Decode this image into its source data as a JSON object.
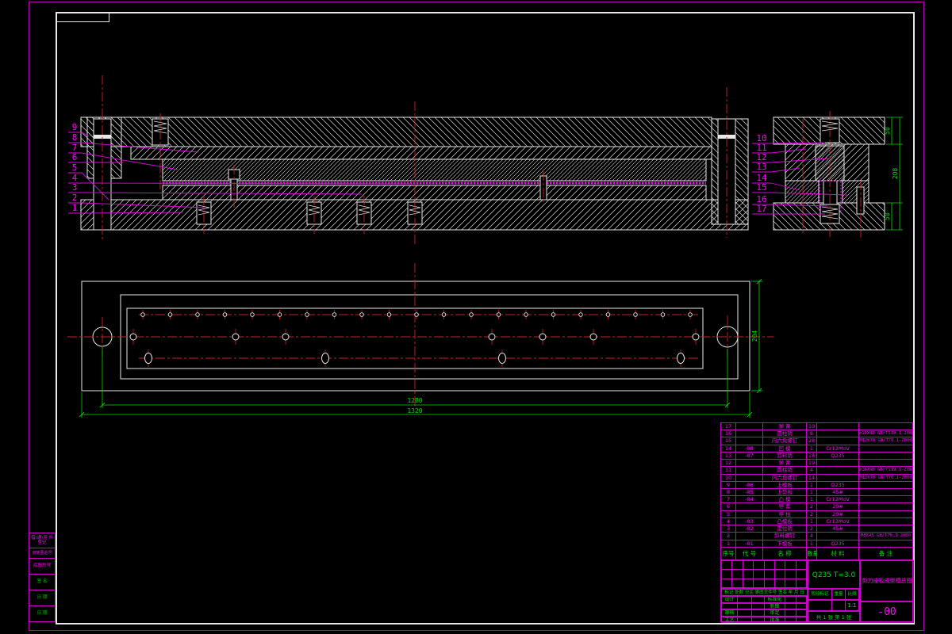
{
  "colors": {
    "background": "#000000",
    "outline": "#E8E8E8",
    "annotation": "#FF00FF",
    "dimension": "#00DD00",
    "centerline": "#CC2222"
  },
  "callouts": {
    "left": [
      "9",
      "8",
      "7",
      "6",
      "5",
      "4",
      "3",
      "2",
      "1"
    ],
    "right": [
      "10",
      "11",
      "12",
      "13",
      "14",
      "15",
      "16",
      "17"
    ]
  },
  "dimensions": {
    "detail_top": "50",
    "detail_height": "208",
    "detail_bottom": "50",
    "plan_inner": "1280",
    "plan_outer": "1320",
    "plan_width": "204"
  },
  "parts_table": {
    "header": {
      "no": "序号",
      "code": "代  号",
      "name": "名  称",
      "qty": "数量",
      "mat": "材  料",
      "note": "备  注"
    },
    "rows": [
      {
        "no": "17",
        "code": "",
        "name": "弹  簧",
        "qty": "10",
        "mat": "",
        "note": ""
      },
      {
        "no": "16",
        "code": "",
        "name": "圆柱销",
        "qty": "8",
        "mat": "",
        "note": "∅16X90 GB/T119.1-2000"
      },
      {
        "no": "15",
        "code": "",
        "name": "内六角螺钉",
        "qty": "28",
        "mat": "",
        "note": "M12X70 GB/T70.1-2000"
      },
      {
        "no": "14",
        "code": "-08",
        "name": "凹  模",
        "qty": "1",
        "mat": "Cr12MoV",
        "note": ""
      },
      {
        "no": "13",
        "code": "-07",
        "name": "卸料销",
        "qty": "18",
        "mat": "Q235",
        "note": ""
      },
      {
        "no": "12",
        "code": "",
        "name": "弹  簧",
        "qty": "19",
        "mat": "",
        "note": ""
      },
      {
        "no": "11",
        "code": "",
        "name": "圆柱销",
        "qty": "4",
        "mat": "",
        "note": "∅16X90 GB/T119.1-2000"
      },
      {
        "no": "10",
        "code": "",
        "name": "内六角螺钉",
        "qty": "14",
        "mat": "",
        "note": "M12X70 GB/T70.1-2000"
      },
      {
        "no": "9",
        "code": "-06",
        "name": "上模板",
        "qty": "1",
        "mat": "Q235",
        "note": ""
      },
      {
        "no": "8",
        "code": "-05",
        "name": "上垫板",
        "qty": "1",
        "mat": "45#",
        "note": ""
      },
      {
        "no": "7",
        "code": "-04",
        "name": "凸  模",
        "qty": "1",
        "mat": "Cr12MoV",
        "note": ""
      },
      {
        "no": "6",
        "code": "",
        "name": "导  套",
        "qty": "2",
        "mat": "20#",
        "note": ""
      },
      {
        "no": "5",
        "code": "",
        "name": "导  柱",
        "qty": "2",
        "mat": "20#",
        "note": ""
      },
      {
        "no": "4",
        "code": "-03",
        "name": "凸模板",
        "qty": "1",
        "mat": "Cr12MoV",
        "note": ""
      },
      {
        "no": "3",
        "code": "-02",
        "name": "定位销",
        "qty": "2",
        "mat": "45#",
        "note": ""
      },
      {
        "no": "2",
        "code": "",
        "name": "卸料螺钉",
        "qty": "4",
        "mat": "",
        "note": "M8X45 GB/T70.3-2000"
      },
      {
        "no": "1",
        "code": "-01",
        "name": "下模板",
        "qty": "1",
        "mat": "Q235",
        "note": ""
      }
    ]
  },
  "title_block": {
    "revision_header": "标记 处数 分区 更改文件号 签名 年 月 日",
    "roles": [
      {
        "l": "设计",
        "r": "标准化"
      },
      {
        "l": "",
        "r": "制图"
      },
      {
        "l": "审核",
        "r": "审定"
      },
      {
        "l": "工艺",
        "r": "批准"
      }
    ],
    "material_spec": "Q235  T=3.0",
    "stage_header": [
      "阶段标记",
      "重量",
      "比例"
    ],
    "scale": "1:1",
    "sheet": "共 1 张  第 1 张",
    "title": "剪刀座板成型模总图",
    "drawing_no": "-00"
  },
  "side_strip": {
    "rows": [
      "借(通)用 件登记",
      "旧底图总号",
      "底图总号",
      "签 名",
      "日 期",
      "日 期"
    ]
  }
}
